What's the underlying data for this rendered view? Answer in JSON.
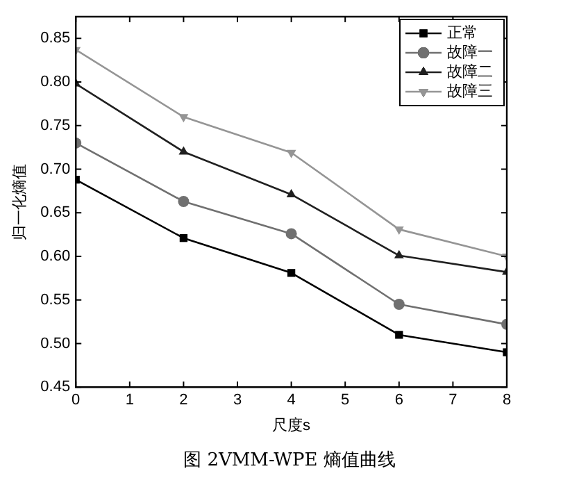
{
  "chart_data": {
    "type": "line",
    "xlabel": "尺度s",
    "ylabel": "归一化熵值",
    "annotations": [
      "图 2VMM-WPE 熵值曲线"
    ],
    "x": [
      0,
      2,
      4,
      6,
      8
    ],
    "xlim": [
      0,
      8
    ],
    "xticks": [
      0,
      1,
      2,
      3,
      4,
      5,
      6,
      7,
      8
    ],
    "ylim": [
      0.45,
      0.875
    ],
    "yticks": [
      0.45,
      {
        "value": 0.5,
        "label": "0.50"
      },
      0.55,
      {
        "value": 0.6,
        "label": "0.60"
      },
      0.65,
      {
        "value": 0.7,
        "label": "0.70"
      },
      0.75,
      {
        "value": 0.8,
        "label": "0.80"
      },
      0.85
    ],
    "series": [
      {
        "name": "正常",
        "color": "#000000",
        "marker": "square",
        "values": [
          0.688,
          0.621,
          0.581,
          0.51,
          0.49
        ]
      },
      {
        "name": "故障一",
        "color": "#707070",
        "marker": "circle",
        "values": [
          0.73,
          0.663,
          0.626,
          0.545,
          0.522
        ]
      },
      {
        "name": "故障二",
        "color": "#202020",
        "marker": "triangle",
        "values": [
          0.798,
          0.72,
          0.671,
          0.601,
          0.582
        ]
      },
      {
        "name": "故障三",
        "color": "#959595",
        "marker": "triangle-down",
        "values": [
          0.837,
          0.76,
          0.719,
          0.631,
          0.6
        ]
      }
    ],
    "grid": false,
    "legend": "top right",
    "line_style": "solid"
  }
}
